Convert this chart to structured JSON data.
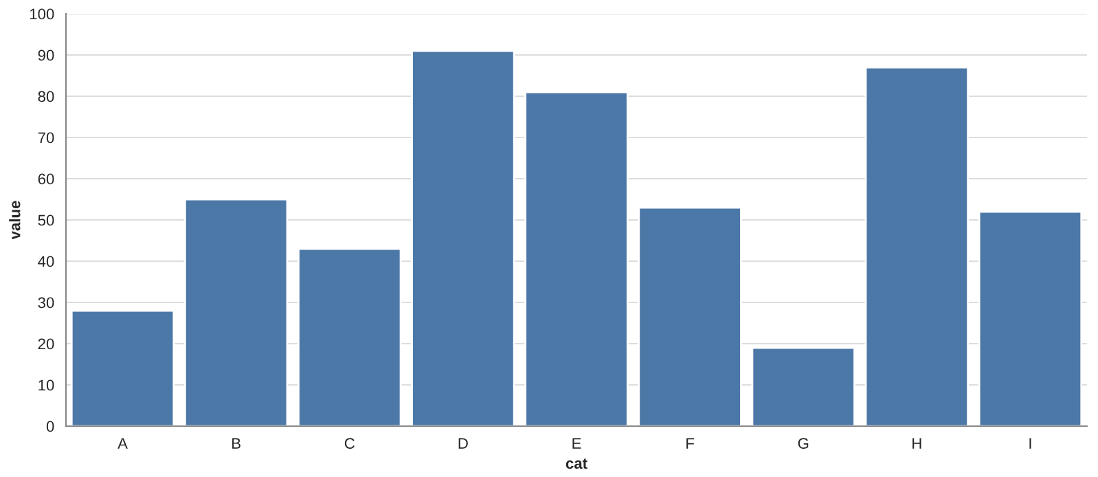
{
  "chart_data": {
    "type": "bar",
    "xlabel": "cat",
    "ylabel": "value",
    "categories": [
      "A",
      "B",
      "C",
      "D",
      "E",
      "F",
      "G",
      "H",
      "I"
    ],
    "values": [
      28,
      55,
      43,
      91,
      81,
      53,
      19,
      87,
      52
    ],
    "color": "#4c78a8",
    "ylim": [
      0,
      100
    ],
    "yticks": [
      0,
      10,
      20,
      30,
      40,
      50,
      60,
      70,
      80,
      90,
      100
    ],
    "grid": "y"
  }
}
